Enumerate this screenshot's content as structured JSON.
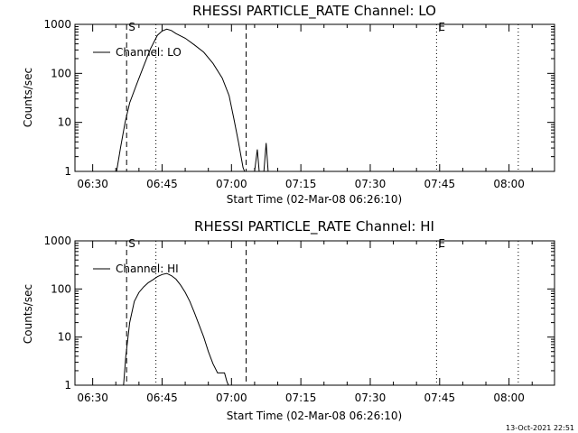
{
  "footer_timestamp": "13-Oct-2021 22:51",
  "colors": {
    "background": "#ffffff",
    "ink": "#000000"
  },
  "chart_data": [
    {
      "type": "line",
      "title": "RHESSI PARTICLE_RATE Channel: LO",
      "xlabel": "Start Time (02-Mar-08 06:26:10)",
      "ylabel": "Counts/sec",
      "yscale": "log",
      "ylim": [
        1,
        1000
      ],
      "xlim": [
        "06:26:10",
        "08:09:50"
      ],
      "x_ticks": [
        "06:30",
        "06:45",
        "07:00",
        "07:15",
        "07:30",
        "07:45",
        "08:00"
      ],
      "y_ticks": [
        "1",
        "10",
        "100",
        "1000"
      ],
      "legend": {
        "entries": [
          "Channel: LO"
        ],
        "position": "top-left"
      },
      "markers": [
        {
          "label": "S",
          "time": "06:37:20",
          "style": "dashed"
        },
        {
          "label": "",
          "time": "06:43:40",
          "style": "dotted"
        },
        {
          "label": "",
          "time": "07:03:10",
          "style": "dashed"
        },
        {
          "label": "E",
          "time": "07:44:20",
          "style": "dotted"
        },
        {
          "label": "",
          "time": "08:02:00",
          "style": "dotted"
        }
      ],
      "series": [
        {
          "name": "Channel: LO",
          "points": [
            [
              "06:35:10",
              1
            ],
            [
              "06:36:00",
              3
            ],
            [
              "06:37:00",
              10
            ],
            [
              "06:38:00",
              25
            ],
            [
              "06:39:30",
              60
            ],
            [
              "06:41:00",
              140
            ],
            [
              "06:42:30",
              320
            ],
            [
              "06:44:00",
              600
            ],
            [
              "06:45:00",
              730
            ],
            [
              "06:46:00",
              800
            ],
            [
              "06:47:00",
              750
            ],
            [
              "06:48:00",
              650
            ],
            [
              "06:50:00",
              520
            ],
            [
              "06:52:00",
              380
            ],
            [
              "06:54:00",
              270
            ],
            [
              "06:56:00",
              160
            ],
            [
              "06:58:00",
              80
            ],
            [
              "06:59:30",
              35
            ],
            [
              "07:00:30",
              12
            ],
            [
              "07:01:30",
              4
            ],
            [
              "07:02:30",
              1.2
            ],
            [
              "07:02:50",
              1
            ],
            null,
            [
              "07:05:00",
              1
            ],
            [
              "07:05:35",
              2.8
            ],
            [
              "07:06:00",
              1
            ],
            null,
            [
              "07:07:00",
              1
            ],
            [
              "07:07:30",
              3.8
            ],
            [
              "07:07:55",
              1
            ]
          ]
        }
      ]
    },
    {
      "type": "line",
      "title": "RHESSI PARTICLE_RATE Channel: HI",
      "xlabel": "Start Time (02-Mar-08 06:26:10)",
      "ylabel": "Counts/sec",
      "yscale": "log",
      "ylim": [
        1,
        1000
      ],
      "xlim": [
        "06:26:10",
        "08:09:50"
      ],
      "x_ticks": [
        "06:30",
        "06:45",
        "07:00",
        "07:15",
        "07:30",
        "07:45",
        "08:00"
      ],
      "y_ticks": [
        "1",
        "10",
        "100",
        "1000"
      ],
      "legend": {
        "entries": [
          "Channel: HI"
        ],
        "position": "top-left"
      },
      "markers": [
        {
          "label": "S",
          "time": "06:37:20",
          "style": "dashed"
        },
        {
          "label": "",
          "time": "06:43:40",
          "style": "dotted"
        },
        {
          "label": "",
          "time": "07:03:10",
          "style": "dashed"
        },
        {
          "label": "E",
          "time": "07:44:20",
          "style": "dotted"
        },
        {
          "label": "",
          "time": "08:02:00",
          "style": "dotted"
        }
      ],
      "series": [
        {
          "name": "Channel: HI",
          "points": [
            [
              "06:36:40",
              1
            ],
            [
              "06:37:10",
              4
            ],
            [
              "06:38:00",
              20
            ],
            [
              "06:39:00",
              55
            ],
            [
              "06:40:00",
              85
            ],
            [
              "06:41:00",
              110
            ],
            [
              "06:42:00",
              135
            ],
            [
              "06:43:00",
              155
            ],
            [
              "06:44:00",
              180
            ],
            [
              "06:45:00",
              200
            ],
            [
              "06:46:00",
              210
            ],
            [
              "06:47:00",
              190
            ],
            [
              "06:48:00",
              160
            ],
            [
              "06:49:00",
              120
            ],
            [
              "06:50:00",
              85
            ],
            [
              "06:51:00",
              55
            ],
            [
              "06:52:00",
              32
            ],
            [
              "06:53:00",
              18
            ],
            [
              "06:54:00",
              10
            ],
            [
              "06:55:00",
              5
            ],
            [
              "06:56:00",
              2.8
            ],
            [
              "06:57:00",
              1.8
            ],
            [
              "06:57:30",
              1.8
            ],
            [
              "06:58:30",
              1.8
            ],
            [
              "06:59:00",
              1.2
            ],
            [
              "06:59:20",
              1
            ]
          ]
        }
      ]
    }
  ]
}
